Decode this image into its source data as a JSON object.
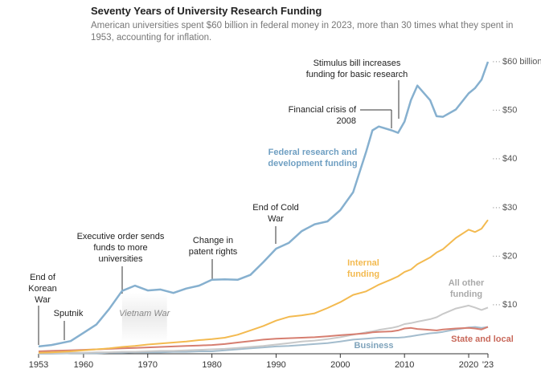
{
  "chart_data": {
    "type": "line",
    "title": "Seventy Years of University Research Funding",
    "subtitle": "American universities spent $60 billion in federal money in 2023, more than 30 times what they spent in 1953, accounting for inflation.",
    "x": [
      1953,
      1955,
      1958,
      1960,
      1962,
      1964,
      1966,
      1968,
      1970,
      1972,
      1974,
      1976,
      1978,
      1980,
      1982,
      1984,
      1986,
      1988,
      1990,
      1992,
      1994,
      1996,
      1998,
      2000,
      2002,
      2004,
      2005,
      2006,
      2008,
      2009,
      2010,
      2011,
      2012,
      2014,
      2015,
      2016,
      2018,
      2020,
      2021,
      2022,
      2023
    ],
    "xlim": [
      1953,
      2023
    ],
    "xticks": [
      1953,
      1960,
      1970,
      1980,
      1990,
      2000,
      2010,
      2020,
      {
        "value": 2023,
        "label": "'23"
      }
    ],
    "ylim": [
      0,
      60
    ],
    "yticks": [
      {
        "value": 10,
        "label": "$10"
      },
      {
        "value": 20,
        "label": "$20"
      },
      {
        "value": 30,
        "label": "$30"
      },
      {
        "value": 40,
        "label": "$40"
      },
      {
        "value": 50,
        "label": "$50"
      },
      {
        "value": 60,
        "label": "$60 billion"
      }
    ],
    "series": [
      {
        "name": "Federal research and development funding",
        "color": "#86b0cf",
        "values": [
          1.5,
          1.8,
          2.6,
          4.3,
          6,
          9.2,
          12.9,
          14,
          13,
          13.2,
          12.5,
          13.4,
          14,
          15.2,
          15.3,
          15.2,
          16.2,
          18.8,
          21.6,
          22.8,
          25.2,
          26.6,
          27.2,
          29.5,
          33.2,
          41.4,
          45.9,
          46.7,
          45.9,
          45.4,
          47.7,
          52.1,
          55.1,
          52.1,
          48.8,
          48.7,
          50.2,
          53.5,
          54.6,
          56.3,
          60
        ]
      },
      {
        "name": "Internal funding",
        "color": "#f3ba50",
        "values": [
          0.2,
          0.3,
          0.5,
          0.7,
          0.9,
          1.1,
          1.4,
          1.6,
          1.9,
          2.1,
          2.3,
          2.5,
          2.8,
          3.0,
          3.3,
          3.9,
          4.8,
          5.7,
          6.8,
          7.6,
          7.9,
          8.3,
          9.4,
          10.6,
          12.1,
          12.8,
          13.5,
          14.2,
          15.3,
          15.9,
          16.8,
          17.3,
          18.4,
          19.8,
          20.8,
          21.5,
          23.8,
          25.5,
          25.0,
          25.7,
          27.5
        ]
      },
      {
        "name": "All other funding",
        "color": "#c9c9c9",
        "values": [
          0.1,
          0.1,
          0.2,
          0.2,
          0.3,
          0.3,
          0.4,
          0.4,
          0.5,
          0.6,
          0.6,
          0.7,
          0.8,
          0.9,
          1.0,
          1.2,
          1.4,
          1.6,
          1.9,
          2.2,
          2.5,
          2.7,
          3.0,
          3.4,
          3.9,
          4.4,
          4.6,
          4.9,
          5.3,
          5.6,
          6.1,
          6.3,
          6.6,
          7.1,
          7.5,
          8.2,
          9.3,
          9.9,
          9.5,
          9.0,
          9.5
        ]
      },
      {
        "name": "Business",
        "color": "#a3bccd",
        "values": [
          0,
          0,
          0.1,
          0.1,
          0.1,
          0.2,
          0.2,
          0.3,
          0.3,
          0.3,
          0.4,
          0.4,
          0.5,
          0.5,
          0.7,
          0.9,
          1.1,
          1.3,
          1.5,
          1.6,
          1.8,
          2.0,
          2.2,
          2.5,
          2.9,
          3.1,
          3.2,
          3.3,
          3.3,
          3.3,
          3.4,
          3.6,
          3.8,
          4.2,
          4.3,
          4.5,
          5.0,
          5.4,
          5.5,
          5.3,
          5.5
        ]
      },
      {
        "name": "State and local",
        "color": "#d67e70",
        "values": [
          0.5,
          0.6,
          0.7,
          0.8,
          0.9,
          1.0,
          1.1,
          1.2,
          1.3,
          1.4,
          1.5,
          1.6,
          1.7,
          1.8,
          2.0,
          2.3,
          2.6,
          2.9,
          3.1,
          3.2,
          3.3,
          3.4,
          3.6,
          3.8,
          4.0,
          4.2,
          4.4,
          4.5,
          4.6,
          4.8,
          5.2,
          5.3,
          5.1,
          4.9,
          4.8,
          5.0,
          5.2,
          5.3,
          5.2,
          5.0,
          5.5
        ]
      }
    ],
    "shaded_period": {
      "label": "Vietnam War",
      "start": 1966,
      "end": 1973
    },
    "annotations": [
      "End of Korean War",
      "Sputnik",
      "Executive order sends funds to more universities",
      "Change in patent rights",
      "End of Cold War",
      "Financial crisis of 2008",
      "Stimulus bill increases funding for basic research"
    ]
  }
}
